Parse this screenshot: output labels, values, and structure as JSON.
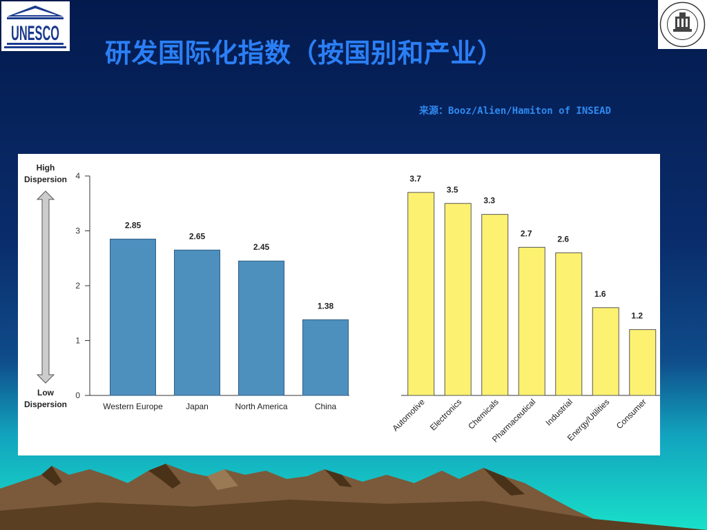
{
  "slide": {
    "title": "研发国际化指数（按国别和产业）",
    "source": "来源：Booz/Alien/Hamiton of INSEAD",
    "logo_text": "UNESCO"
  },
  "chart_data": [
    {
      "type": "bar",
      "categories": [
        "Western Europe",
        "Japan",
        "North America",
        "China"
      ],
      "values": [
        2.85,
        2.65,
        2.45,
        1.38
      ],
      "value_labels": [
        "2.85",
        "2.65",
        "2.45",
        "1.38"
      ],
      "ylim": [
        0,
        4
      ],
      "yticks": [
        0,
        1,
        2,
        3,
        4
      ],
      "high_label": [
        "High",
        "Dispersion"
      ],
      "low_label": [
        "Low",
        "Dispersion"
      ],
      "bar_color": "#4d8fbd",
      "grid": false
    },
    {
      "type": "bar",
      "categories": [
        "Automotive",
        "Electronics",
        "Chemicals",
        "Pharmaceutical",
        "Industrial",
        "Energy/Utilities",
        "Consumer"
      ],
      "values": [
        3.7,
        3.5,
        3.3,
        2.7,
        2.6,
        1.6,
        1.2
      ],
      "value_labels": [
        "3.7",
        "3.5",
        "3.3",
        "2.7",
        "2.6",
        "1.6",
        "1.2"
      ],
      "ylim": [
        0,
        4
      ],
      "bar_color": "#fdf171",
      "grid": false
    }
  ]
}
